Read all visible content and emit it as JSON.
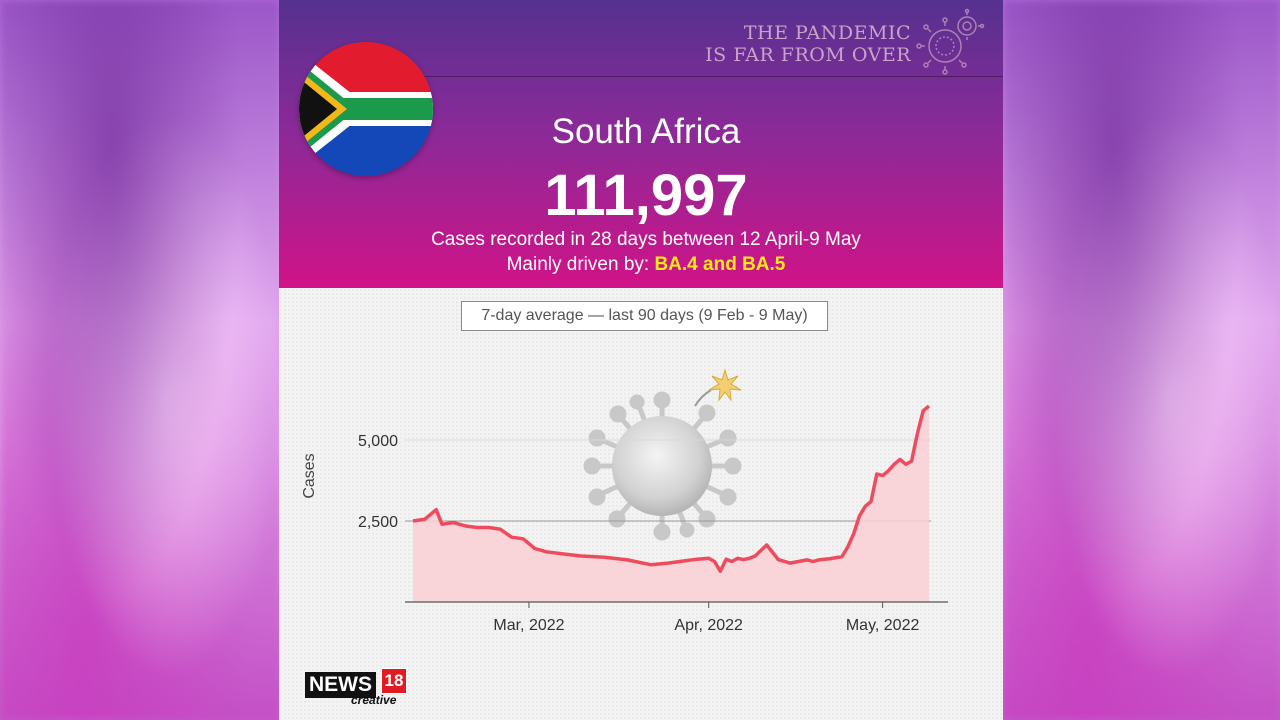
{
  "tagline": {
    "line1": "THE PANDEMIC",
    "line2": "IS FAR FROM OVER"
  },
  "country": "South Africa",
  "total_cases": "111,997",
  "subtitle_line1": "Cases recorded in 28 days between 12 April-9 May",
  "driven_by_prefix": "Mainly driven by: ",
  "driven_by_variant": "BA.4 and BA.5",
  "chart_subtitle": "7-day average — last 90 days (9 Feb - 9 May)",
  "brand": {
    "news": "NEWS",
    "num": "18",
    "creative": "creative"
  },
  "colors": {
    "line": "#ef4b5f",
    "fill": "#f9cfd3",
    "variant": "#ffe81a"
  },
  "icons": [
    "virus-logo-icon",
    "south-africa-flag-icon",
    "coronavirus-bomb-icon"
  ],
  "chart_data": {
    "type": "area",
    "title": "",
    "subtitle": "7-day average — last 90 days (9 Feb - 9 May)",
    "xlabel": "",
    "ylabel": "Cases",
    "x_ticks": [
      "Mar, 2022",
      "Apr, 2022",
      "May, 2022"
    ],
    "y_ticks": [
      2500,
      5000
    ],
    "y_tick_labels": [
      "2,500",
      "5,000"
    ],
    "ylim": [
      0,
      6800
    ],
    "grid": "horizontal",
    "x": [
      "2022-02-09",
      "2022-02-11",
      "2022-02-13",
      "2022-02-14",
      "2022-02-16",
      "2022-02-18",
      "2022-02-20",
      "2022-02-22",
      "2022-02-24",
      "2022-02-26",
      "2022-02-28",
      "2022-03-02",
      "2022-03-04",
      "2022-03-07",
      "2022-03-10",
      "2022-03-14",
      "2022-03-18",
      "2022-03-22",
      "2022-03-25",
      "2022-03-27",
      "2022-03-30",
      "2022-04-01",
      "2022-04-02",
      "2022-04-03",
      "2022-04-04",
      "2022-04-05",
      "2022-04-06",
      "2022-04-07",
      "2022-04-08",
      "2022-04-09",
      "2022-04-11",
      "2022-04-13",
      "2022-04-15",
      "2022-04-18",
      "2022-04-19",
      "2022-04-20",
      "2022-04-22",
      "2022-04-24",
      "2022-04-25",
      "2022-04-26",
      "2022-04-27",
      "2022-04-28",
      "2022-04-29",
      "2022-04-30",
      "2022-05-01",
      "2022-05-02",
      "2022-05-03",
      "2022-05-04",
      "2022-05-05",
      "2022-05-06",
      "2022-05-07",
      "2022-05-08",
      "2022-05-09"
    ],
    "series": [
      {
        "values": [
          2500,
          2550,
          2850,
          2400,
          2450,
          2350,
          2300,
          2300,
          2250,
          2000,
          1950,
          1650,
          1550,
          1480,
          1420,
          1380,
          1300,
          1150,
          1200,
          1250,
          1320,
          1350,
          1250,
          950,
          1320,
          1250,
          1350,
          1310,
          1350,
          1420,
          1760,
          1310,
          1200,
          1300,
          1250,
          1300,
          1340,
          1400,
          1700,
          2100,
          2650,
          2950,
          3100,
          3950,
          3900,
          4050,
          4250,
          4400,
          4250,
          4350,
          5200,
          5900,
          6050
        ]
      }
    ]
  }
}
